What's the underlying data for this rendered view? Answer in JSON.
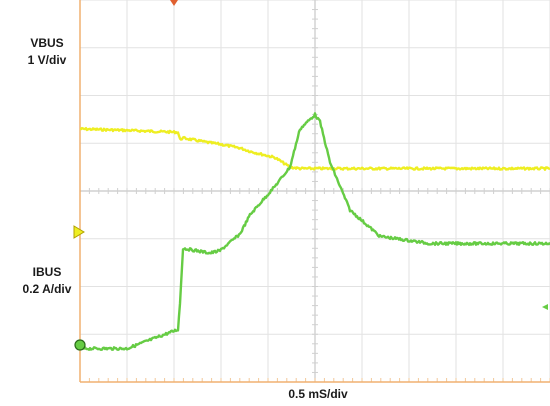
{
  "chart_data": {
    "type": "line",
    "x": [
      0,
      0.47,
      0.98,
      1.0,
      1.03,
      1.3,
      1.4,
      1.6,
      1.7,
      1.95,
      2.1,
      2.2,
      2.3,
      2.35,
      2.4,
      2.5,
      2.7,
      3.0,
      3.5,
      4.0,
      4.7
    ],
    "series": [
      {
        "name": "VBUS",
        "unit": "1 V/div",
        "color": "#eeee22",
        "values": [
          3.05,
          3.02,
          2.98,
          2.83,
          2.86,
          2.76,
          2.73,
          2.65,
          2.58,
          2.45,
          2.25,
          2.22,
          2.22,
          2.22,
          2.22,
          2.22,
          2.22,
          2.22,
          2.22,
          2.22,
          2.22
        ]
      },
      {
        "name": "IBUS",
        "unit": "0.2 A/div",
        "color": "#66cc44",
        "values": [
          0.0,
          0.0,
          0.08,
          0.19,
          0.42,
          0.4,
          0.41,
          0.48,
          0.56,
          0.68,
          0.76,
          0.92,
          0.96,
          0.98,
          0.95,
          0.78,
          0.58,
          0.47,
          0.44,
          0.44,
          0.44
        ]
      }
    ],
    "labels": {
      "vbus_name": "VBUS",
      "vbus_scale": "1 V/div",
      "ibus_name": "IBUS",
      "ibus_scale": "0.2 A/div",
      "xlabel": "0.5 mS/div"
    },
    "xlim": [
      0,
      4.7
    ],
    "grid": true
  }
}
